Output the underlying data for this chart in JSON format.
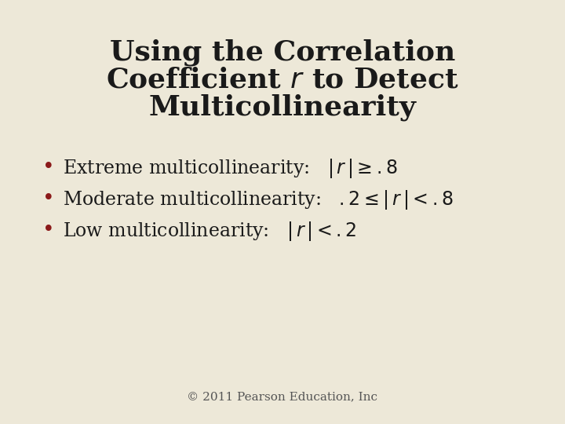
{
  "background_color": "#ede8d8",
  "title_color": "#1a1a1a",
  "title_fontsize": 26,
  "bullet_color": "#8b1a1a",
  "bullet_fontsize": 17,
  "footer": "© 2011 Pearson Education, Inc",
  "footer_fontsize": 11,
  "footer_color": "#555555",
  "title_line1": "Using the Correlation",
  "title_line2a": "Coefficient ",
  "title_line2b": " to Detect",
  "title_line3": "Multicollinearity",
  "bullet1_plain": "Extreme multicollinearity:   ",
  "bullet1_math": "$|\\,r\\,|\\geq .8$",
  "bullet2_plain": "Moderate multicollinearity:   ",
  "bullet2_math": "$.2\\leq|\\,r\\,|<.8$",
  "bullet3_plain": "Low multicollinearity:   ",
  "bullet3_math": "$|\\,r\\,|<.2$"
}
